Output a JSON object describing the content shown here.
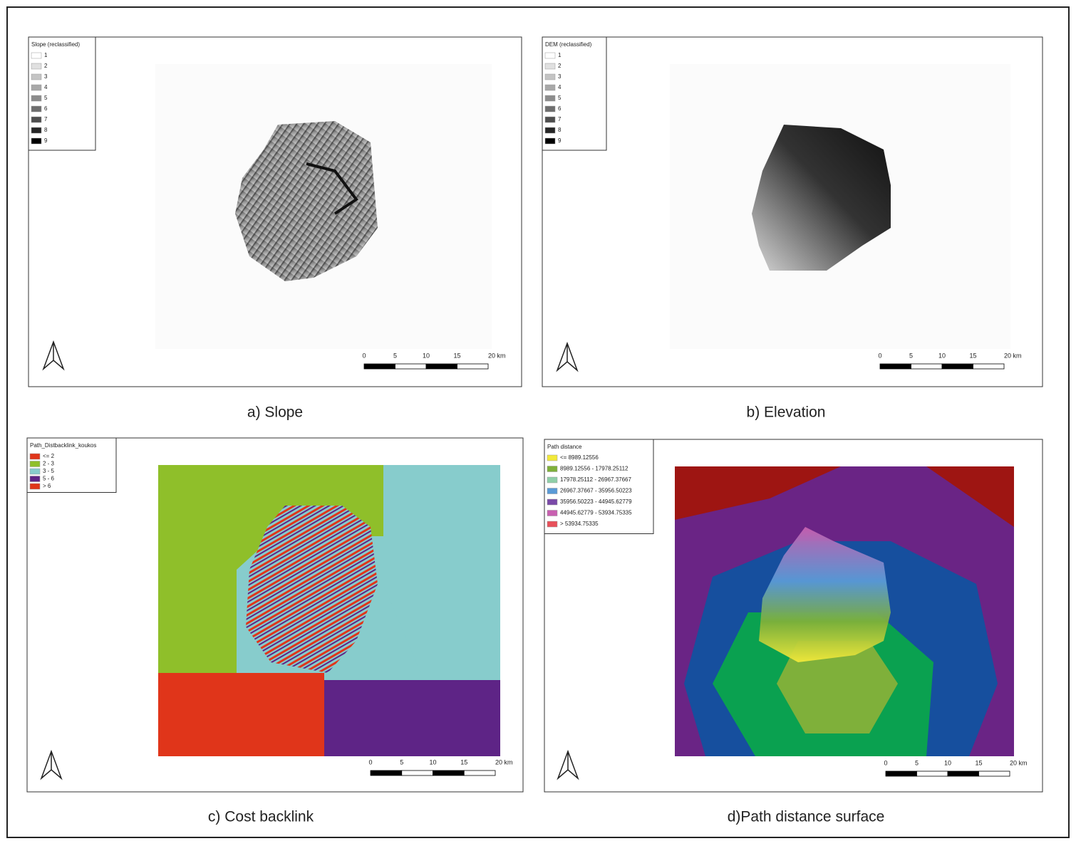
{
  "panels": [
    {
      "caption": "a) Slope",
      "legend": {
        "title": "Slope (reclassified)",
        "items": [
          {
            "label": "1",
            "color": "#ffffff"
          },
          {
            "label": "2",
            "color": "#e0e0e0"
          },
          {
            "label": "3",
            "color": "#c4c4c4"
          },
          {
            "label": "4",
            "color": "#a8a8a8"
          },
          {
            "label": "5",
            "color": "#8c8c8c"
          },
          {
            "label": "6",
            "color": "#6e6e6e"
          },
          {
            "label": "7",
            "color": "#4e4e4e"
          },
          {
            "label": "8",
            "color": "#262626"
          },
          {
            "label": "9",
            "color": "#000000"
          }
        ]
      },
      "scale": [
        "0",
        "5",
        "10",
        "15",
        "20 km"
      ]
    },
    {
      "caption": "b) Elevation",
      "legend": {
        "title": "DEM (reclassified)",
        "items": [
          {
            "label": "1",
            "color": "#ffffff"
          },
          {
            "label": "2",
            "color": "#e0e0e0"
          },
          {
            "label": "3",
            "color": "#c4c4c4"
          },
          {
            "label": "4",
            "color": "#a8a8a8"
          },
          {
            "label": "5",
            "color": "#8c8c8c"
          },
          {
            "label": "6",
            "color": "#6e6e6e"
          },
          {
            "label": "7",
            "color": "#4e4e4e"
          },
          {
            "label": "8",
            "color": "#262626"
          },
          {
            "label": "9",
            "color": "#000000"
          }
        ]
      },
      "scale": [
        "0",
        "5",
        "10",
        "15",
        "20 km"
      ]
    },
    {
      "caption": "c) Cost backlink",
      "legend": {
        "title": "Path_Distbacklink_koukos",
        "items": [
          {
            "label": "<= 2",
            "color": "#e0351a"
          },
          {
            "label": "2 - 3",
            "color": "#8fbf2a"
          },
          {
            "label": "3 - 5",
            "color": "#87cccc"
          },
          {
            "label": "5 - 6",
            "color": "#5e2486"
          },
          {
            "label": "> 6",
            "color": "#e0351a"
          }
        ]
      },
      "scale": [
        "0",
        "5",
        "10",
        "15",
        "20 km"
      ]
    },
    {
      "caption": "d)Path distance surface",
      "legend": {
        "title": "Path distance",
        "items": [
          {
            "label": "<= 8989.12556",
            "color": "#f2e93a"
          },
          {
            "label": "8989.12556 - 17978.25112",
            "color": "#7fb03a"
          },
          {
            "label": "17978.25112 - 26967.37667",
            "color": "#8fcfa8"
          },
          {
            "label": "26967.37667 - 35956.50223",
            "color": "#5a9ad6"
          },
          {
            "label": "35956.50223 - 44945.62779",
            "color": "#7a4aa8"
          },
          {
            "label": "44945.62779 - 53934.75335",
            "color": "#c860b0"
          },
          {
            "label": "> 53934.75335",
            "color": "#e8505a"
          }
        ]
      },
      "scale": [
        "0",
        "5",
        "10",
        "15",
        "20 km"
      ]
    }
  ]
}
